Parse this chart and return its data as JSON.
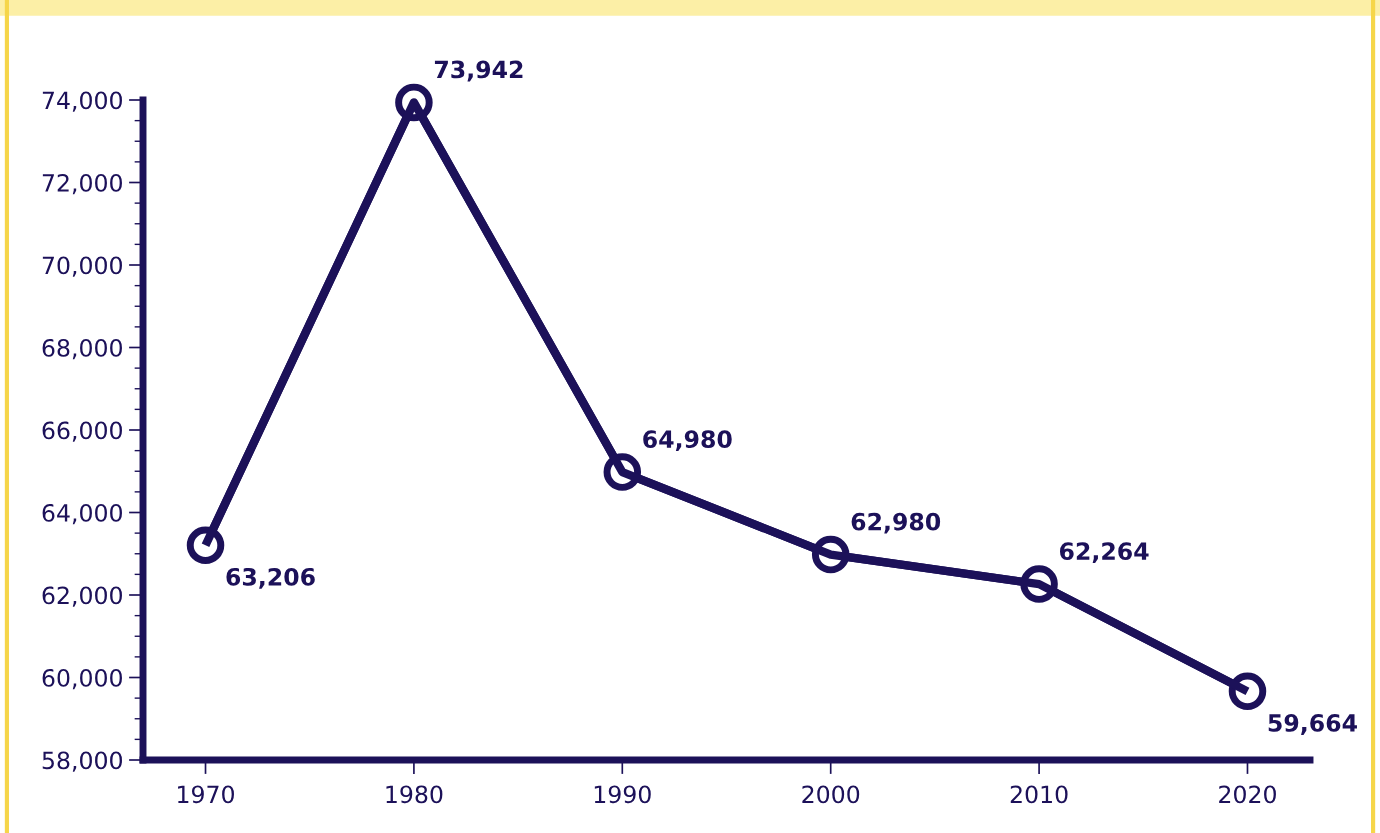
{
  "chart_data": {
    "type": "line",
    "x": [
      1970,
      1980,
      1990,
      2000,
      2010,
      2020
    ],
    "series": [
      {
        "color": "#1c1159",
        "values": [
          63206,
          73942,
          64980,
          62980,
          62264,
          59664
        ],
        "value_labels": [
          "63,206",
          "73,942",
          "64,980",
          "62,980",
          "62,264",
          "59,664"
        ]
      }
    ],
    "xlim": [
      1967,
      2023
    ],
    "xticks": [
      {
        "value": 1970,
        "label": "1970"
      },
      {
        "value": 1980,
        "label": "1980"
      },
      {
        "value": 1990,
        "label": "1990"
      },
      {
        "value": 2000,
        "label": "2000"
      },
      {
        "value": 2010,
        "label": "2010"
      },
      {
        "value": 2020,
        "label": "2020"
      }
    ],
    "ylim": [
      58000,
      74000
    ],
    "yticks": [
      {
        "value": 58000,
        "label": "58,000"
      },
      {
        "value": 60000,
        "label": "60,000"
      },
      {
        "value": 62000,
        "label": "62,000"
      },
      {
        "value": 64000,
        "label": "64,000"
      },
      {
        "value": 66000,
        "label": "66,000"
      },
      {
        "value": 68000,
        "label": "68,000"
      },
      {
        "value": 70000,
        "label": "70,000"
      },
      {
        "value": 72000,
        "label": "72,000"
      },
      {
        "value": 74000,
        "label": "74,000"
      }
    ],
    "marker": "circle",
    "line_style": "solid",
    "grid": false,
    "legend": false
  }
}
